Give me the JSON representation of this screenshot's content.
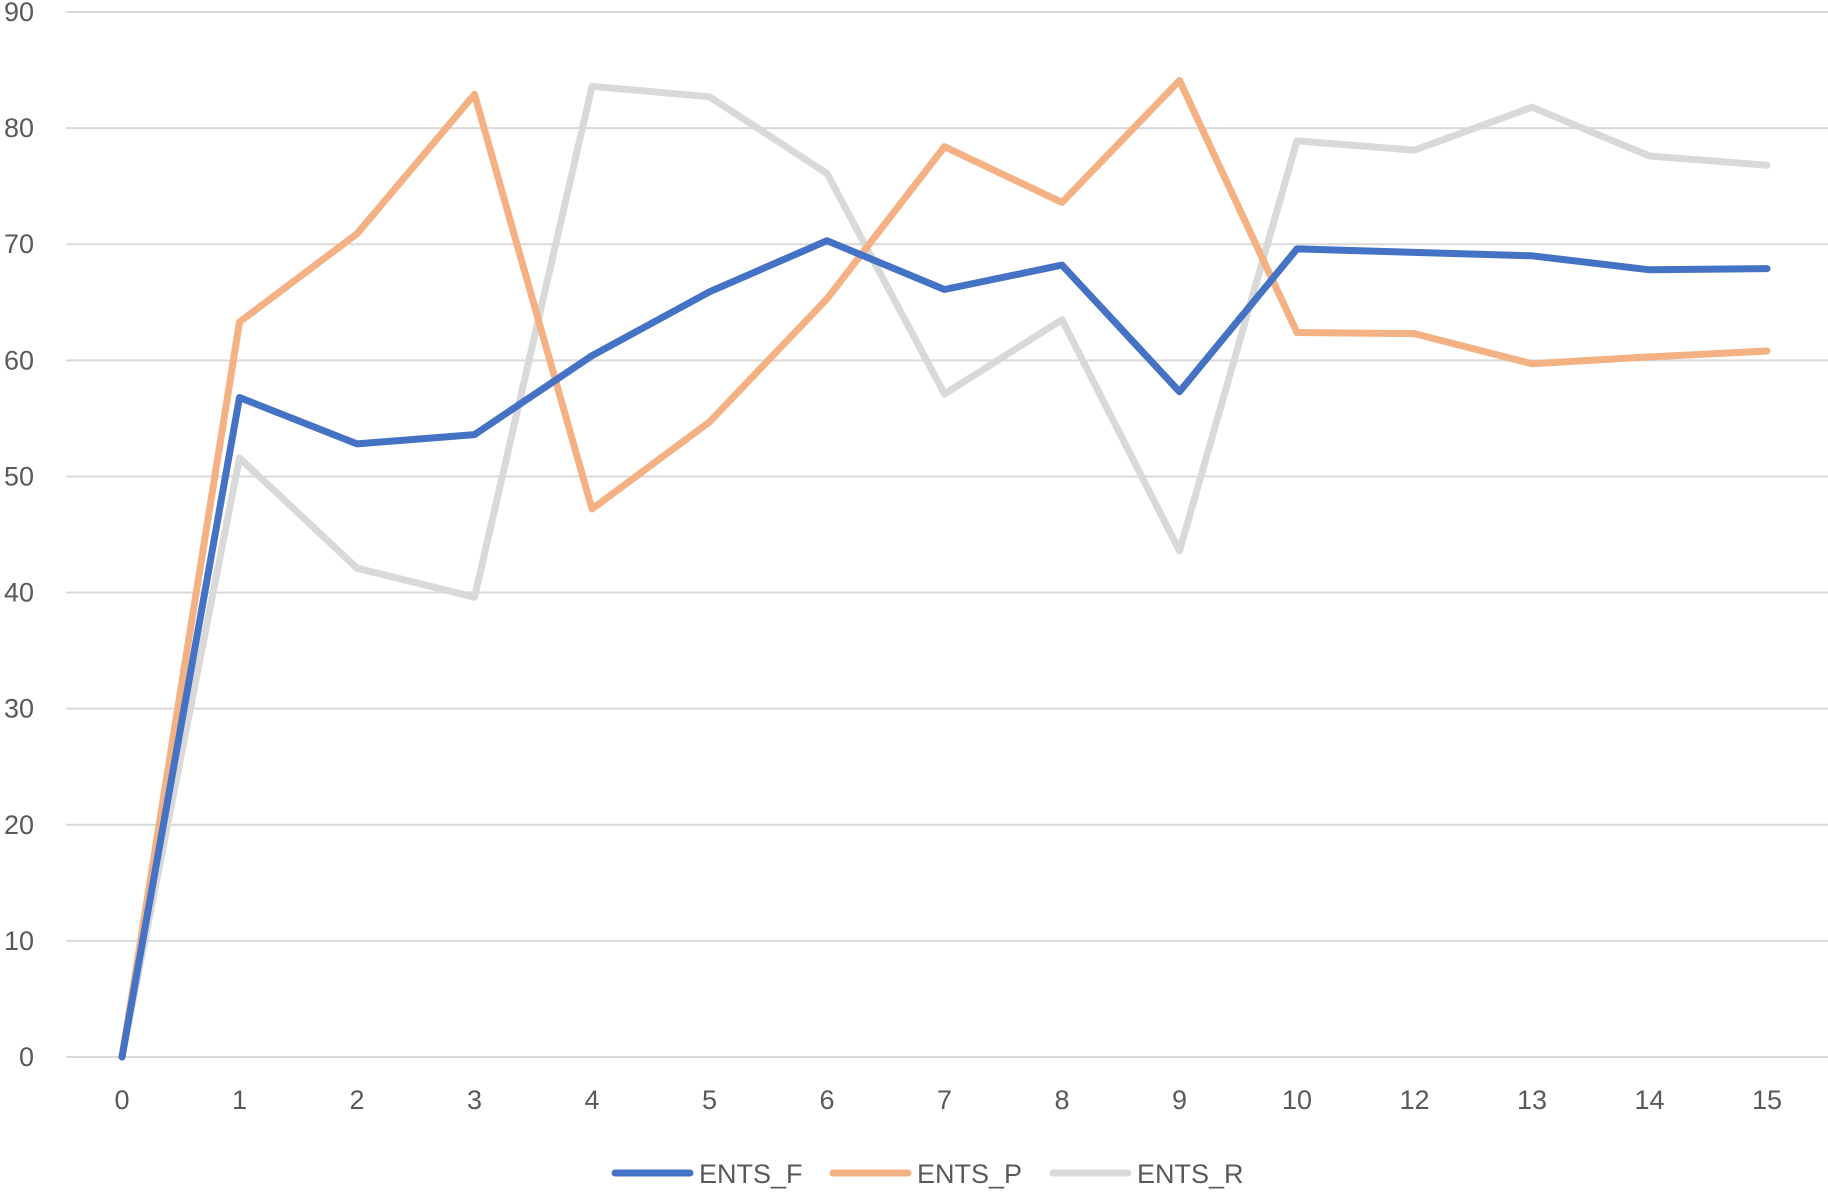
{
  "chart_data": {
    "type": "line",
    "title": "",
    "xlabel": "",
    "ylabel": "",
    "categories": [
      "0",
      "1",
      "2",
      "3",
      "4",
      "5",
      "6",
      "7",
      "8",
      "9",
      "10",
      "12",
      "13",
      "14",
      "15"
    ],
    "ylim": [
      0,
      90
    ],
    "yticks": [
      "0",
      "10",
      "20",
      "30",
      "40",
      "50",
      "60",
      "70",
      "80",
      "90"
    ],
    "grid": true,
    "legend_position": "bottom",
    "series": [
      {
        "name": "ENTS_F",
        "color": "#4472c4",
        "values": [
          0,
          56.8,
          52.8,
          53.6,
          60.4,
          65.9,
          70.3,
          66.1,
          68.2,
          57.3,
          69.6,
          69.3,
          69.0,
          67.8,
          67.9
        ]
      },
      {
        "name": "ENTS_P",
        "color": "#f4b183",
        "values": [
          0,
          63.3,
          70.9,
          82.9,
          47.2,
          54.7,
          65.3,
          78.4,
          73.6,
          84.1,
          62.4,
          62.3,
          59.7,
          60.3,
          60.8
        ]
      },
      {
        "name": "ENTS_R",
        "color": "#d9d9d9",
        "values": [
          0,
          51.6,
          42.1,
          39.6,
          83.6,
          82.7,
          76.1,
          57.1,
          63.5,
          43.6,
          78.9,
          78.1,
          81.8,
          77.6,
          76.8
        ]
      }
    ]
  }
}
